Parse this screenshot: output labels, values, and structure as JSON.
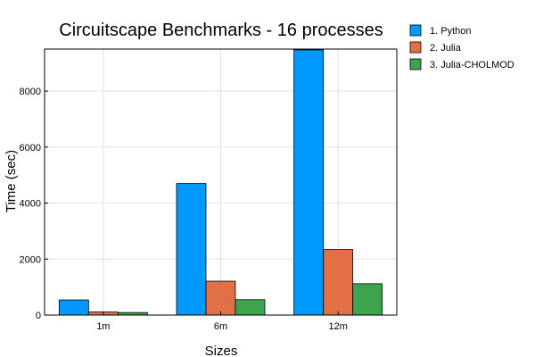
{
  "chart_data": {
    "type": "bar",
    "title": "Circuitscape Benchmarks - 16 processes",
    "xlabel": "Sizes",
    "ylabel": "Time (sec)",
    "categories": [
      "1m",
      "6m",
      "12m"
    ],
    "series": [
      {
        "name": "1. Python",
        "color": "#0099ff",
        "values": [
          540,
          4700,
          9470
        ]
      },
      {
        "name": "2. Julia",
        "color": "#e26f46",
        "values": [
          110,
          1210,
          2340
        ]
      },
      {
        "name": "3. Julia-CHOLMOD",
        "color": "#3da44d",
        "values": [
          90,
          550,
          1120
        ]
      }
    ],
    "ylim": [
      0,
      9500
    ],
    "yticks": [
      0,
      2000,
      4000,
      6000,
      8000
    ],
    "grid": true,
    "legend_position": "top-right-outside"
  }
}
